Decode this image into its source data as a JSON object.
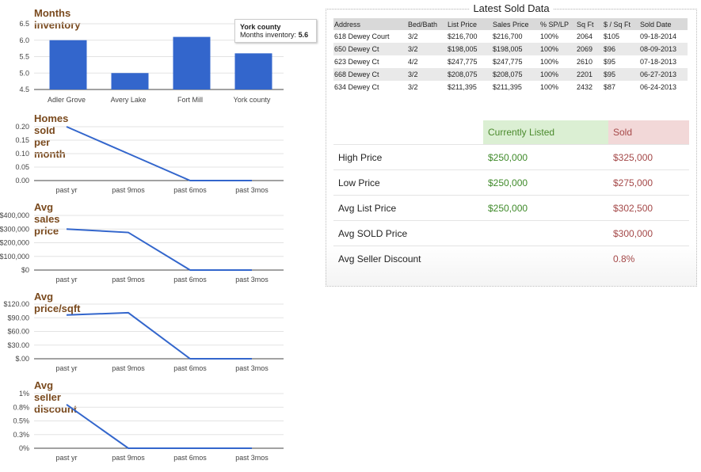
{
  "chart_data": [
    {
      "type": "bar",
      "title": "Months inventory",
      "categories": [
        "Adler Grove",
        "Avery Lake",
        "Fort Mill",
        "York county"
      ],
      "values": [
        6.0,
        5.0,
        6.1,
        5.6
      ],
      "ylim": [
        4.5,
        6.5
      ],
      "yticks": [
        "6.5",
        "6.0",
        "5.5",
        "5.0",
        "4.5"
      ],
      "grid": true,
      "tooltip": {
        "title": "York county",
        "label": "Months inventory:",
        "value": "5.6"
      }
    },
    {
      "type": "line",
      "title": "Homes sold per month",
      "categories": [
        "past yr",
        "past 9mos",
        "past 6mos",
        "past 3mos"
      ],
      "values": [
        0.2,
        0.1,
        0,
        0
      ],
      "ylim": [
        0,
        0.2
      ],
      "yticks": [
        "0.20",
        "0.15",
        "0.10",
        "0.05",
        "0.00"
      ],
      "grid": true
    },
    {
      "type": "line",
      "title": "Avg sales price",
      "categories": [
        "past yr",
        "past 9mos",
        "past 6mos",
        "past 3mos"
      ],
      "values": [
        300000,
        275000,
        0,
        0
      ],
      "ylim": [
        0,
        400000
      ],
      "yticks": [
        "$400,000",
        "$300,000",
        "$200,000",
        "$100,000",
        "$0"
      ],
      "grid": true
    },
    {
      "type": "line",
      "title": "Avg price/sqft",
      "categories": [
        "past yr",
        "past 9mos",
        "past 6mos",
        "past 3mos"
      ],
      "values": [
        96,
        101,
        0,
        0
      ],
      "ylim": [
        0,
        120
      ],
      "yticks": [
        "$120.00",
        "$90.00",
        "$60.00",
        "$30.00",
        "$.00"
      ],
      "grid": true
    },
    {
      "type": "line",
      "title": "Avg seller discount",
      "categories": [
        "past yr",
        "past 9mos",
        "past 6mos",
        "past 3mos"
      ],
      "values": [
        0.8,
        0,
        0,
        0
      ],
      "ylim": [
        0,
        1
      ],
      "yticks": [
        "1%",
        "0.8%",
        "0.5%",
        "0.3%",
        "0%"
      ],
      "grid": true
    }
  ],
  "latest_sold": {
    "title": "Latest Sold Data",
    "columns": [
      "Address",
      "Bed/Bath",
      "List Price",
      "Sales Price",
      "% SP/LP",
      "Sq Ft",
      "$ / Sq Ft",
      "Sold Date"
    ],
    "rows": [
      [
        "618 Dewey Court",
        "3/2",
        "$216,700",
        "$216,700",
        "100%",
        "2064",
        "$105",
        "09-18-2014"
      ],
      [
        "650 Dewey Ct",
        "3/2",
        "$198,005",
        "$198,005",
        "100%",
        "2069",
        "$96",
        "08-09-2013"
      ],
      [
        "623 Dewey Ct",
        "4/2",
        "$247,775",
        "$247,775",
        "100%",
        "2610",
        "$95",
        "07-18-2013"
      ],
      [
        "668 Dewey Ct",
        "3/2",
        "$208,075",
        "$208,075",
        "100%",
        "2201",
        "$95",
        "06-27-2013"
      ],
      [
        "634 Dewey Ct",
        "3/2",
        "$211,395",
        "$211,395",
        "100%",
        "2432",
        "$87",
        "06-24-2013"
      ]
    ]
  },
  "stats": {
    "header_current": "Currently Listed",
    "header_sold": "Sold",
    "rows": [
      {
        "label": "High Price",
        "current": "$250,000",
        "sold": "$325,000"
      },
      {
        "label": "Low Price",
        "current": "$250,000",
        "sold": "$275,000"
      },
      {
        "label": "Avg List Price",
        "current": "$250,000",
        "sold": "$302,500"
      },
      {
        "label": "Avg SOLD Price",
        "current": "",
        "sold": "$300,000"
      },
      {
        "label": "Avg Seller Discount",
        "current": "",
        "sold": "0.8%"
      }
    ]
  },
  "colors": {
    "series": "#3366cc",
    "title": "#7a4a1e",
    "listed": "#3f8a2a",
    "sold": "#a44848"
  }
}
